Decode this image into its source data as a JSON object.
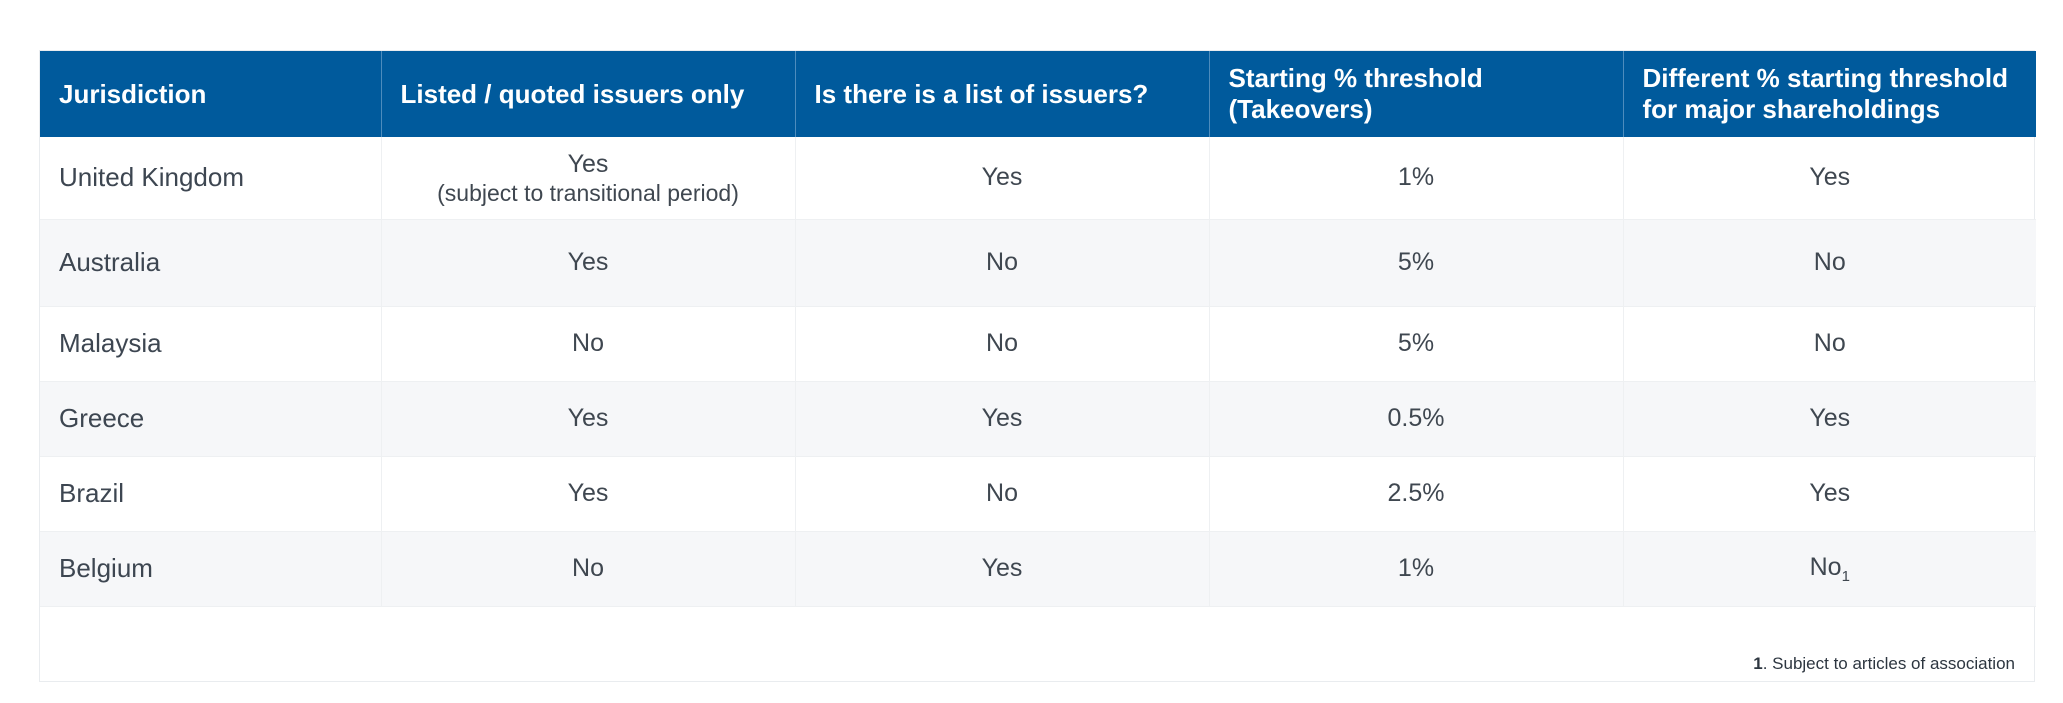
{
  "table": {
    "headers": [
      "Jurisdiction",
      "Listed / quoted issuers only",
      "Is there is a list of issuers?",
      "Starting % threshold (Takeovers)",
      "Different % starting threshold for major shareholdings"
    ],
    "header_lines": {
      "h4_line1": "Starting % threshold",
      "h4_line2": "(Takeovers)",
      "h5_line1": "Different % starting threshold",
      "h5_line2": "for major shareholdings"
    },
    "rows": [
      {
        "jurisdiction": "United Kingdom",
        "listed_only": "Yes",
        "listed_only_note": "(subject to transitional period)",
        "list_of_issuers": "Yes",
        "threshold": "1%",
        "different_threshold": "Yes"
      },
      {
        "jurisdiction": "Australia",
        "listed_only": "Yes",
        "list_of_issuers": "No",
        "threshold": "5%",
        "different_threshold": "No"
      },
      {
        "jurisdiction": "Malaysia",
        "listed_only": "No",
        "list_of_issuers": "No",
        "threshold": "5%",
        "different_threshold": "No"
      },
      {
        "jurisdiction": "Greece",
        "listed_only": "Yes",
        "list_of_issuers": "Yes",
        "threshold": "0.5%",
        "different_threshold": "Yes"
      },
      {
        "jurisdiction": "Brazil",
        "listed_only": "Yes",
        "list_of_issuers": "No",
        "threshold": "2.5%",
        "different_threshold": "Yes"
      },
      {
        "jurisdiction": "Belgium",
        "listed_only": "No",
        "list_of_issuers": "Yes",
        "threshold": "1%",
        "different_threshold": "No",
        "different_threshold_footnote_ref": "1"
      }
    ]
  },
  "footnote": {
    "number": "1",
    "text": ". Subject to articles of association"
  },
  "colors": {
    "header_bg": "#005a9c",
    "header_text": "#ffffff",
    "alt_row_bg": "#f6f7f9"
  }
}
